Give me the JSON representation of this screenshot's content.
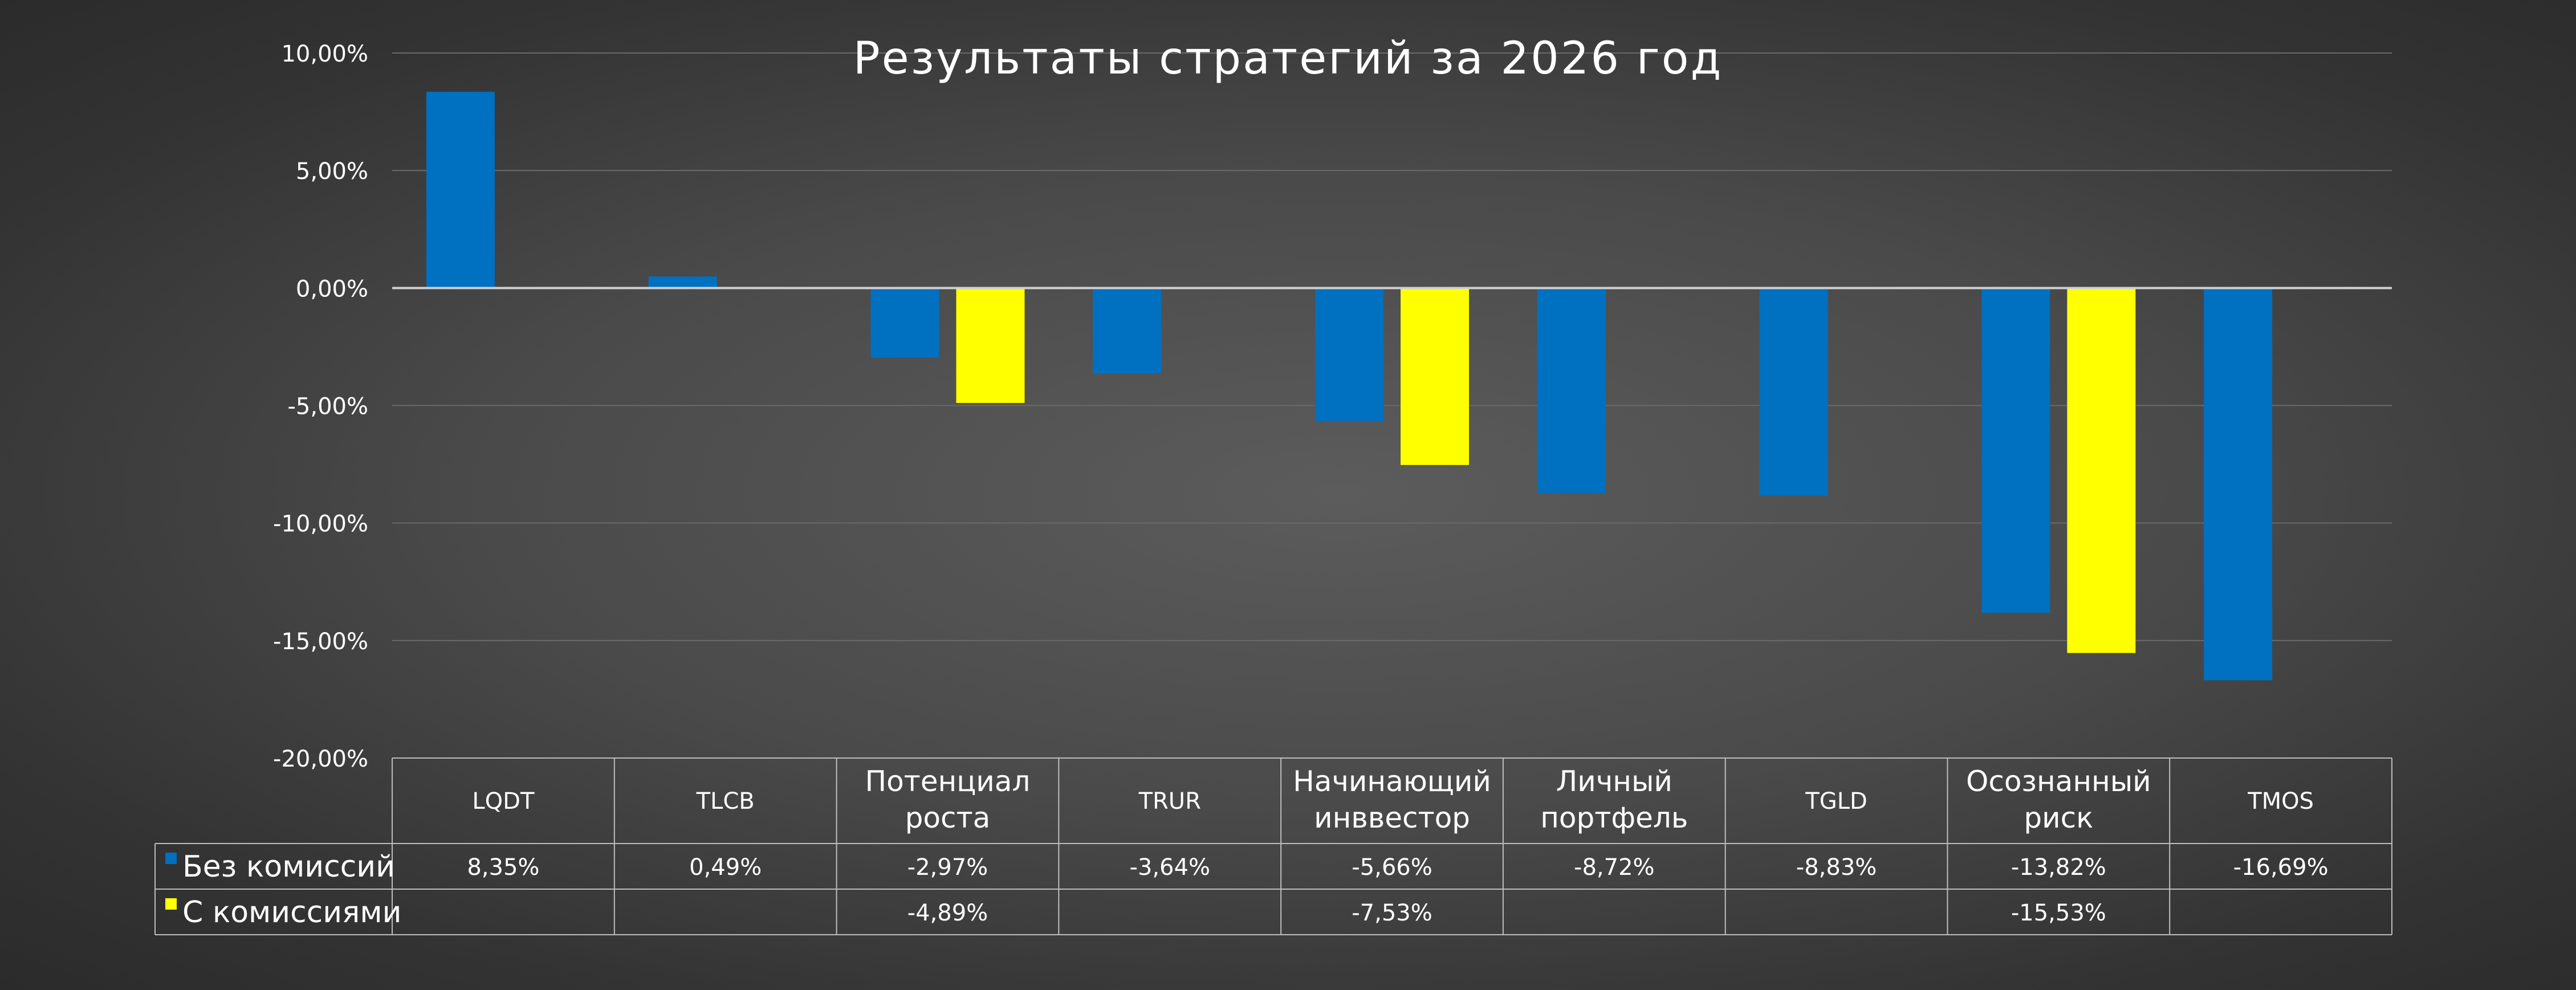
{
  "chart_data": {
    "type": "bar",
    "title": "Результаты стратегий за 2026 год",
    "categories": [
      [
        "LQDT"
      ],
      [
        "TLCB"
      ],
      [
        "Потенциал",
        "роста"
      ],
      [
        "TRUR"
      ],
      [
        "Начинающий",
        "инввестор"
      ],
      [
        "Личный",
        "портфель"
      ],
      [
        "TGLD"
      ],
      [
        "Осознанный",
        "риск"
      ],
      [
        "TMOS"
      ]
    ],
    "series": [
      {
        "name": "Без комиссий",
        "color": "#0070C0",
        "values": [
          8.35,
          0.49,
          -2.97,
          -3.64,
          -5.66,
          -8.72,
          -8.83,
          -13.82,
          -16.69
        ],
        "labels": [
          "8,35%",
          "0,49%",
          "-2,97%",
          "-3,64%",
          "-5,66%",
          "-8,72%",
          "-8,83%",
          "-13,82%",
          "-16,69%"
        ]
      },
      {
        "name": "С комиссиями",
        "color": "#FFFF00",
        "values": [
          null,
          null,
          -4.89,
          null,
          -7.53,
          null,
          null,
          -15.53,
          null
        ],
        "labels": [
          "",
          "",
          "-4,89%",
          "",
          "-7,53%",
          "",
          "",
          "-15,53%",
          ""
        ]
      }
    ],
    "ylim": [
      -20,
      10
    ],
    "yticks": [
      10,
      5,
      0,
      -5,
      -10,
      -15,
      -20
    ],
    "ytick_labels": [
      "10,00%",
      "5,00%",
      "0,00%",
      "-5,00%",
      "-10,00%",
      "-15,00%",
      "-20,00%"
    ],
    "grid": true,
    "legend": "data-table"
  }
}
